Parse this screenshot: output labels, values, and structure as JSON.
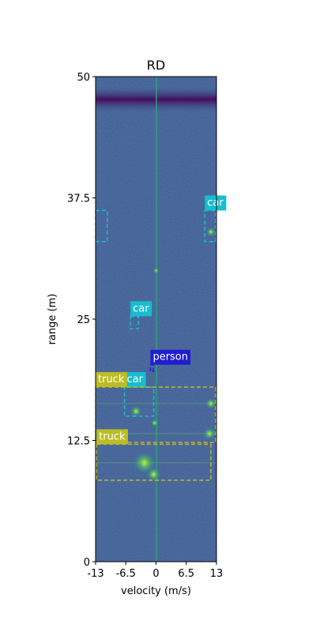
{
  "chart_data": {
    "type": "heatmap",
    "title": "RD",
    "xlabel": "velocity (m/s)",
    "ylabel": "range (m)",
    "xlim": [
      -13,
      13
    ],
    "ylim": [
      0,
      50
    ],
    "xticks": [
      -13,
      -6.5,
      0,
      6.5,
      13
    ],
    "xtick_labels": [
      "-13",
      "-6.5",
      "0",
      "6.5",
      "13"
    ],
    "yticks": [
      0,
      12.5,
      25,
      37.5,
      50
    ],
    "ytick_labels": [
      "0",
      "12.5",
      "25",
      "37.5",
      "50"
    ],
    "grid": false,
    "colormap": "viridis",
    "detections": [
      {
        "label": "car",
        "color": "#17becf",
        "x0": 10.5,
        "x1": 12.8,
        "y0": 33.0,
        "y1": 36.2
      },
      {
        "label": "car",
        "color": "#17becf",
        "x0": -5.5,
        "x1": -3.8,
        "y0": 24.0,
        "y1": 25.3
      },
      {
        "label": "person",
        "color": "#1f1fcf",
        "x0": -1.2,
        "x1": -0.6,
        "y0": 19.6,
        "y1": 20.3
      },
      {
        "label": "car",
        "color": "#17becf",
        "x0": -6.8,
        "x1": -0.5,
        "y0": 15.0,
        "y1": 18.0
      },
      {
        "label": "truck",
        "color": "#bcbd22",
        "x0": -13,
        "x1": 12.8,
        "y0": 12.3,
        "y1": 18.0
      },
      {
        "label": "truck",
        "color": "#bcbd22",
        "x0": -12.8,
        "x1": 11.8,
        "y0": 8.4,
        "y1": 12.1
      },
      {
        "label": "",
        "color": "#17becf",
        "x0": -13,
        "x1": -10.5,
        "y0": 33.0,
        "y1": 36.2
      }
    ]
  },
  "colors": {
    "background": "#3b528b",
    "dark_band": "#440154",
    "bright": "#b5de2b",
    "car": "#17becf",
    "truck": "#bcbd22",
    "person": "#1f1fcf"
  }
}
